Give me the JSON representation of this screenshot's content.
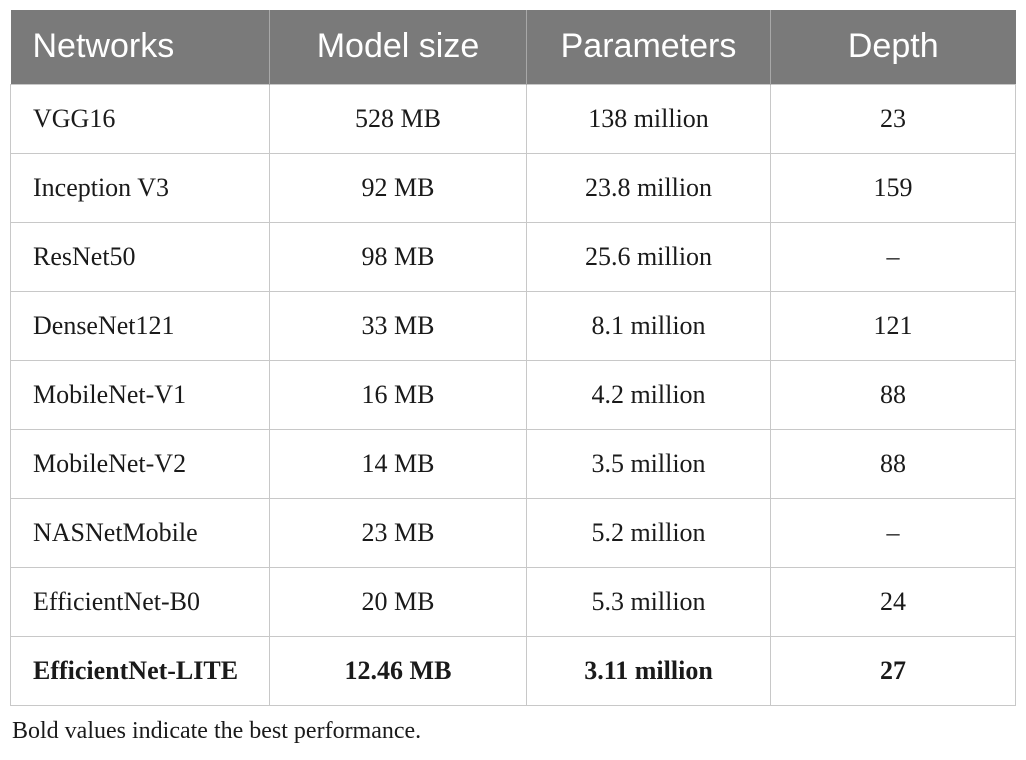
{
  "table": {
    "headers": [
      "Networks",
      "Model size",
      "Parameters",
      "Depth"
    ],
    "rows": [
      {
        "network": "VGG16",
        "model_size": "528 MB",
        "parameters": "138 million",
        "depth": "23",
        "bold": false
      },
      {
        "network": "Inception V3",
        "model_size": "92 MB",
        "parameters": "23.8 million",
        "depth": "159",
        "bold": false
      },
      {
        "network": "ResNet50",
        "model_size": "98 MB",
        "parameters": "25.6 million",
        "depth": "–",
        "bold": false
      },
      {
        "network": "DenseNet121",
        "model_size": "33 MB",
        "parameters": "8.1 million",
        "depth": "121",
        "bold": false
      },
      {
        "network": "MobileNet-V1",
        "model_size": "16 MB",
        "parameters": "4.2 million",
        "depth": "88",
        "bold": false
      },
      {
        "network": "MobileNet-V2",
        "model_size": "14 MB",
        "parameters": "3.5 million",
        "depth": "88",
        "bold": false
      },
      {
        "network": "NASNetMobile",
        "model_size": "23 MB",
        "parameters": "5.2 million",
        "depth": "–",
        "bold": false
      },
      {
        "network": "EfficientNet-B0",
        "model_size": "20 MB",
        "parameters": "5.3 million",
        "depth": "24",
        "bold": false
      },
      {
        "network": "EfficientNet-LITE",
        "model_size": "12.46 MB",
        "parameters": "3.11 million",
        "depth": "27",
        "bold": true
      }
    ]
  },
  "caption": "Bold values indicate the best performance.",
  "colors": {
    "header_bg": "#7a7a7a",
    "header_text": "#ffffff",
    "border": "#c8c8c8",
    "text": "#1a1a1a"
  }
}
